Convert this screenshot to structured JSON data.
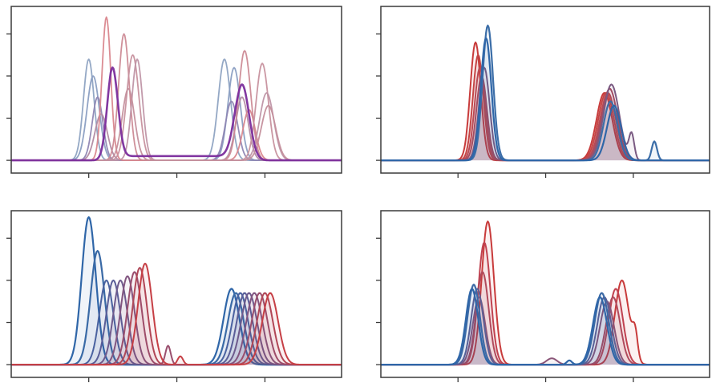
{
  "figure": {
    "layout": "2x2 grid",
    "background": "#ffffff",
    "frame_color": "#3a3a3a"
  },
  "chart_data": [
    {
      "type": "line",
      "panel": "top-left",
      "title": "",
      "xlabel": "",
      "ylabel": "",
      "xlim": [
        0,
        375
      ],
      "ylim": [
        -0.15,
        3.5
      ],
      "xticks": [
        88,
        188,
        288
      ],
      "yticks": [
        0,
        1,
        2,
        3
      ],
      "tick_labels_shown": false,
      "grid": false,
      "fill_under": false,
      "series": [
        {
          "color": "#8ea3c2",
          "width": 1.8,
          "peaks": [
            [
              88,
              2.4,
              6
            ],
            [
              242,
              2.4,
              7
            ]
          ]
        },
        {
          "color": "#8a9ec2",
          "width": 1.8,
          "peaks": [
            [
              93,
              2.0,
              7
            ],
            [
              253,
              2.2,
              7
            ]
          ]
        },
        {
          "color": "#8f86b3",
          "width": 1.8,
          "peaks": [
            [
              98,
              1.5,
              6
            ],
            [
              250,
              1.4,
              7
            ]
          ]
        },
        {
          "color": "#b28ba3",
          "width": 1.8,
          "peaks": [
            [
              102,
              1.1,
              7
            ],
            [
              262,
              1.5,
              7
            ]
          ]
        },
        {
          "color": "#d9868d",
          "width": 1.8,
          "peaks": [
            [
              108,
              3.4,
              5
            ],
            [
              270,
              1.2,
              7
            ]
          ]
        },
        {
          "color": "#cc8a95",
          "width": 1.8,
          "peaks": [
            [
              128,
              3.0,
              6
            ],
            [
              265,
              2.6,
              7
            ]
          ]
        },
        {
          "color": "#c7919e",
          "width": 1.8,
          "peaks": [
            [
              138,
              2.5,
              7
            ],
            [
              285,
              2.3,
              7
            ]
          ]
        },
        {
          "color": "#bf95a6",
          "width": 1.8,
          "peaks": [
            [
              143,
              2.4,
              6
            ],
            [
              290,
              1.6,
              8
            ]
          ]
        },
        {
          "color": "#c48f9c",
          "width": 1.8,
          "peaks": [
            [
              133,
              1.7,
              7
            ],
            [
              292,
              1.3,
              8
            ]
          ]
        },
        {
          "color": "#7b2d9c",
          "width": 2.6,
          "peaks": [
            [
              115,
              2.2,
              6
            ],
            [
              262,
              1.8,
              8
            ]
          ],
          "plateau": [
            120,
            255,
            0.1
          ]
        }
      ]
    },
    {
      "type": "line",
      "panel": "top-right",
      "title": "",
      "xlabel": "",
      "ylabel": "",
      "xlim": [
        0,
        375
      ],
      "ylim": [
        -0.15,
        3.5
      ],
      "xticks": [
        88,
        188,
        288
      ],
      "yticks": [
        0,
        1,
        2,
        3
      ],
      "tick_labels_shown": false,
      "grid": false,
      "fill_under": true,
      "series": [
        {
          "color": "#c83b3b",
          "width": 2.0,
          "peaks": [
            [
              108,
              2.8,
              6
            ],
            [
              255,
              1.6,
              9
            ]
          ]
        },
        {
          "color": "#c44545",
          "width": 2.0,
          "peaks": [
            [
              111,
              2.5,
              6
            ],
            [
              257,
              1.6,
              9
            ]
          ]
        },
        {
          "color": "#b94a55",
          "width": 2.0,
          "peaks": [
            [
              113,
              2.2,
              6
            ],
            [
              259,
              1.6,
              9
            ]
          ]
        },
        {
          "color": "#a44d62",
          "width": 2.0,
          "peaks": [
            [
              115,
              2.0,
              6
            ],
            [
              261,
              1.7,
              9
            ]
          ]
        },
        {
          "color": "#7a5a82",
          "width": 2.0,
          "peaks": [
            [
              118,
              2.2,
              6
            ],
            [
              263,
              1.8,
              9
            ],
            [
              286,
              0.6,
              3
            ]
          ]
        },
        {
          "color": "#3c6ea8",
          "width": 2.2,
          "peaks": [
            [
              122,
              3.2,
              6
            ],
            [
              262,
              1.4,
              8
            ],
            [
              312,
              0.45,
              3
            ]
          ]
        },
        {
          "color": "#2f66a8",
          "width": 2.2,
          "peaks": [
            [
              120,
              2.9,
              6
            ],
            [
              266,
              1.3,
              8
            ]
          ]
        }
      ]
    },
    {
      "type": "line",
      "panel": "bottom-left",
      "title": "",
      "xlabel": "",
      "ylabel": "",
      "xlim": [
        0,
        375
      ],
      "ylim": [
        -0.15,
        3.5
      ],
      "xticks": [
        88,
        188,
        288
      ],
      "yticks": [
        0,
        1,
        2,
        3
      ],
      "tick_labels_shown": false,
      "grid": false,
      "fill_under": true,
      "series": [
        {
          "color": "#2f66a8",
          "width": 2.2,
          "peaks": [
            [
              88,
              3.5,
              8
            ],
            [
              250,
              1.8,
              9
            ]
          ]
        },
        {
          "color": "#3a6aa6",
          "width": 2.2,
          "peaks": [
            [
              98,
              2.7,
              8
            ],
            [
              255,
              1.7,
              9
            ]
          ]
        },
        {
          "color": "#4a62a0",
          "width": 2.0,
          "peaks": [
            [
              108,
              2.0,
              8
            ],
            [
              260,
              1.7,
              9
            ]
          ]
        },
        {
          "color": "#5a5e98",
          "width": 2.0,
          "peaks": [
            [
              116,
              2.0,
              8
            ],
            [
              265,
              1.7,
              9
            ]
          ]
        },
        {
          "color": "#6d5a8c",
          "width": 2.0,
          "peaks": [
            [
              124,
              2.0,
              8
            ],
            [
              270,
              1.7,
              9
            ]
          ]
        },
        {
          "color": "#825580",
          "width": 2.0,
          "peaks": [
            [
              132,
              2.1,
              8
            ],
            [
              276,
              1.7,
              9
            ]
          ]
        },
        {
          "color": "#9a4f6e",
          "width": 2.0,
          "peaks": [
            [
              140,
              2.2,
              8
            ],
            [
              282,
              1.7,
              9
            ],
            [
              178,
              0.45,
              3
            ]
          ]
        },
        {
          "color": "#b04858",
          "width": 2.0,
          "peaks": [
            [
              146,
              2.3,
              8
            ],
            [
              288,
              1.7,
              9
            ]
          ]
        },
        {
          "color": "#c63f45",
          "width": 2.0,
          "peaks": [
            [
              152,
              2.4,
              8
            ],
            [
              294,
              1.7,
              9
            ],
            [
              192,
              0.2,
              3
            ]
          ]
        }
      ]
    },
    {
      "type": "line",
      "panel": "bottom-right",
      "title": "",
      "xlabel": "",
      "ylabel": "",
      "xlim": [
        0,
        375
      ],
      "ylim": [
        -0.15,
        3.5
      ],
      "xticks": [
        88,
        188,
        288
      ],
      "yticks": [
        0,
        1,
        2,
        3
      ],
      "tick_labels_shown": false,
      "grid": false,
      "fill_under": true,
      "series": [
        {
          "color": "#c83b3b",
          "width": 2.0,
          "peaks": [
            [
              122,
              3.4,
              7
            ],
            [
              275,
              2.0,
              8
            ],
            [
              290,
              0.6,
              3
            ]
          ]
        },
        {
          "color": "#c04250",
          "width": 2.0,
          "peaks": [
            [
              118,
              2.9,
              7
            ],
            [
              268,
              1.8,
              8
            ]
          ]
        },
        {
          "color": "#b04a5c",
          "width": 2.0,
          "peaks": [
            [
              116,
              2.2,
              7
            ],
            [
              265,
              1.6,
              8
            ]
          ]
        },
        {
          "color": "#8a5578",
          "width": 2.0,
          "peaks": [
            [
              112,
              1.6,
              7
            ],
            [
              258,
              1.5,
              8
            ],
            [
              195,
              0.15,
              6
            ]
          ]
        },
        {
          "color": "#5e6095",
          "width": 2.0,
          "peaks": [
            [
              110,
              1.8,
              7
            ],
            [
              255,
              1.6,
              8
            ]
          ]
        },
        {
          "color": "#3c6aa6",
          "width": 2.2,
          "peaks": [
            [
              106,
              1.9,
              7
            ],
            [
              252,
              1.7,
              8
            ]
          ]
        },
        {
          "color": "#2f66a8",
          "width": 2.2,
          "peaks": [
            [
              104,
              1.8,
              7
            ],
            [
              250,
              1.6,
              8
            ],
            [
              215,
              0.1,
              3
            ]
          ]
        }
      ]
    }
  ]
}
